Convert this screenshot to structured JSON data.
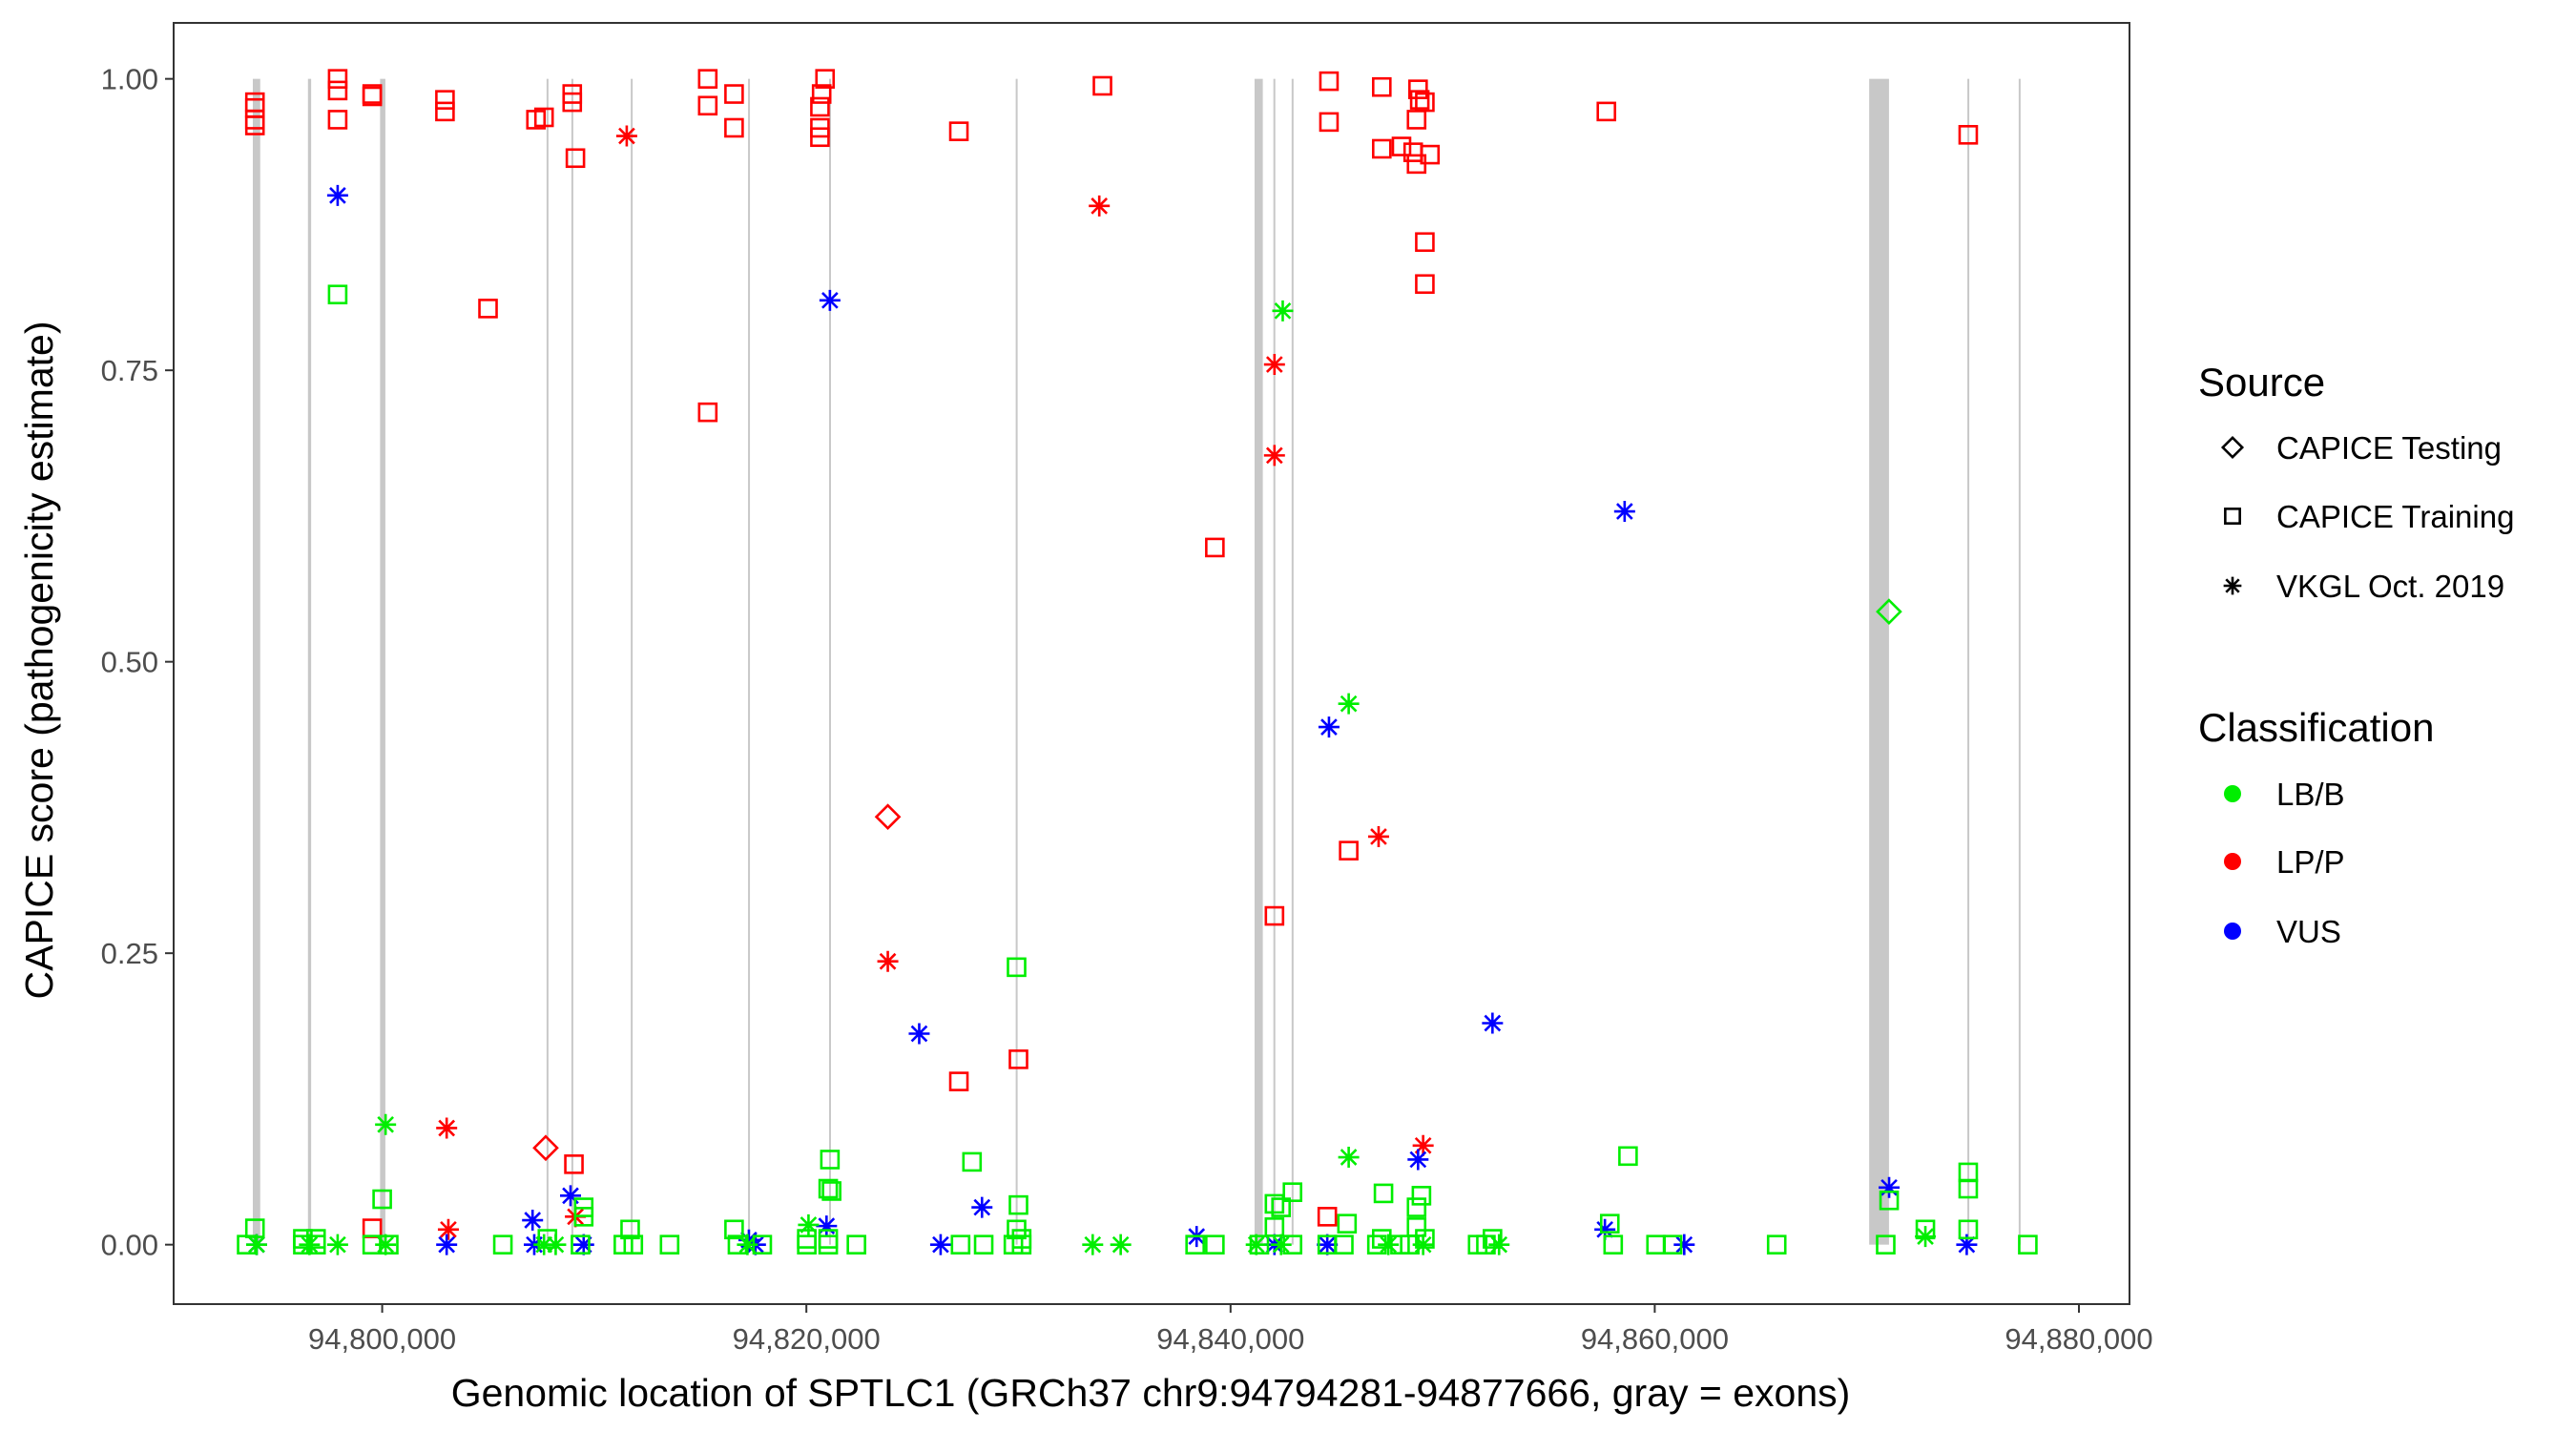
{
  "chart_data": {
    "type": "scatter",
    "xlabel": "Genomic location of SPTLC1 (GRCh37 chr9:94794281-94877666, gray = exons)",
    "ylabel": "CAPICE score (pathogenicity estimate)",
    "xlim": [
      94790167,
      94882384
    ],
    "ylim": [
      -0.051,
      1.048
    ],
    "x_ticks": [
      94800000,
      94820000,
      94840000,
      94860000,
      94880000
    ],
    "x_tick_labels": [
      "94,800,000",
      "94,820,000",
      "94,840,000",
      "94,860,000",
      "94,880,000"
    ],
    "y_ticks": [
      0,
      0.25,
      0.5,
      0.75,
      1.0
    ],
    "y_tick_labels": [
      "0.00",
      "0.25",
      "0.50",
      "0.75",
      "1.00"
    ],
    "grid": false,
    "legend_placement": "right",
    "legend": {
      "source_title": "Source",
      "sources": [
        {
          "label": "CAPICE Testing",
          "shape": "diamond"
        },
        {
          "label": "CAPICE Training",
          "shape": "square"
        },
        {
          "label": "VKGL Oct. 2019",
          "shape": "asterisk"
        }
      ],
      "class_title": "Classification",
      "classes": [
        {
          "label": "LB/B",
          "color": "#00ee00"
        },
        {
          "label": "LP/P",
          "color": "#ff0000"
        },
        {
          "label": "VUS",
          "color": "#0000ff"
        }
      ]
    },
    "exons": [
      [
        94793900,
        94794250
      ],
      [
        94796500,
        94796650
      ],
      [
        94799900,
        94800150
      ],
      [
        94807750,
        94807830
      ],
      [
        94808920,
        94809000
      ],
      [
        94811720,
        94811800
      ],
      [
        94817250,
        94817330
      ],
      [
        94821070,
        94821150
      ],
      [
        94829870,
        94829950
      ],
      [
        94841131,
        94841521
      ],
      [
        94842020,
        94842100
      ],
      [
        94842880,
        94842960
      ],
      [
        94870110,
        94871045
      ],
      [
        94874740,
        94874820
      ],
      [
        94877160,
        94877240
      ]
    ],
    "series": [
      {
        "source": "CAPICE Training",
        "class": "LP/P",
        "points": [
          [
            94794000,
            0.98
          ],
          [
            94794000,
            0.975
          ],
          [
            94794000,
            0.965
          ],
          [
            94794000,
            0.96
          ],
          [
            94797900,
            1.0
          ],
          [
            94797900,
            0.99
          ],
          [
            94797900,
            0.965
          ],
          [
            94799530,
            0.987
          ],
          [
            94799530,
            0.985
          ],
          [
            94802960,
            0.982
          ],
          [
            94802960,
            0.972
          ],
          [
            94807250,
            0.965
          ],
          [
            94807630,
            0.967
          ],
          [
            94808960,
            0.987
          ],
          [
            94808960,
            0.98
          ],
          [
            94809110,
            0.932
          ],
          [
            94815350,
            1.0
          ],
          [
            94815350,
            0.977
          ],
          [
            94816590,
            0.987
          ],
          [
            94816590,
            0.958
          ],
          [
            94820880,
            1.0
          ],
          [
            94820720,
            0.987
          ],
          [
            94820640,
            0.976
          ],
          [
            94820640,
            0.958
          ],
          [
            94820640,
            0.95
          ],
          [
            94827190,
            0.955
          ],
          [
            94833960,
            0.994
          ],
          [
            94844640,
            0.998
          ],
          [
            94844640,
            0.963
          ],
          [
            94847130,
            0.993
          ],
          [
            94847130,
            0.94
          ],
          [
            94848060,
            0.942
          ],
          [
            94848840,
            0.991
          ],
          [
            94848920,
            0.982
          ],
          [
            94848770,
            0.965
          ],
          [
            94848610,
            0.937
          ],
          [
            94848770,
            0.927
          ],
          [
            94849160,
            0.98
          ],
          [
            94849400,
            0.935
          ],
          [
            94849160,
            0.86
          ],
          [
            94849160,
            0.824
          ],
          [
            94857720,
            0.972
          ],
          [
            94874780,
            0.952
          ],
          [
            94804990,
            0.803
          ],
          [
            94815350,
            0.714
          ],
          [
            94839260,
            0.598
          ],
          [
            94845570,
            0.338
          ],
          [
            94842070,
            0.282
          ],
          [
            94827190,
            0.14
          ],
          [
            94830000,
            0.159
          ],
          [
            94809040,
            0.069
          ],
          [
            94799530,
            0.014
          ],
          [
            94844560,
            0.024
          ]
        ]
      },
      {
        "source": "VKGL Oct. 2019",
        "class": "LP/P",
        "points": [
          [
            94811530,
            0.951
          ],
          [
            94833810,
            0.891
          ],
          [
            94842070,
            0.755
          ],
          [
            94842070,
            0.677
          ],
          [
            94846980,
            0.35
          ],
          [
            94823840,
            0.243
          ],
          [
            94803040,
            0.1
          ],
          [
            94803120,
            0.013
          ],
          [
            94809110,
            0.024
          ],
          [
            94849080,
            0.085
          ]
        ]
      },
      {
        "source": "CAPICE Testing",
        "class": "LP/P",
        "points": [
          [
            94823840,
            0.367
          ],
          [
            94807710,
            0.083
          ]
        ]
      },
      {
        "source": "CAPICE Testing",
        "class": "LB/B",
        "points": [
          [
            94871045,
            0.543
          ]
        ]
      },
      {
        "source": "VKGL Oct. 2019",
        "class": "VUS",
        "points": [
          [
            94797900,
            0.9
          ],
          [
            94821110,
            0.81
          ],
          [
            94858580,
            0.629
          ],
          [
            94844640,
            0.444
          ],
          [
            94825320,
            0.181
          ],
          [
            94852350,
            0.19
          ],
          [
            94828280,
            0.032
          ],
          [
            94848840,
            0.073
          ],
          [
            94871050,
            0.049
          ],
          [
            94808880,
            0.042
          ],
          [
            94807090,
            0.021
          ],
          [
            94820950,
            0.016
          ],
          [
            94857650,
            0.013
          ],
          [
            94838400,
            0.007
          ],
          [
            94794080,
            0
          ],
          [
            94803040,
            0
          ],
          [
            94807170,
            0
          ],
          [
            94809500,
            0
          ],
          [
            94817290,
            0.004
          ],
          [
            94817600,
            0
          ],
          [
            94826330,
            0
          ],
          [
            94842070,
            0
          ],
          [
            94844560,
            0
          ],
          [
            94861390,
            0
          ],
          [
            94874710,
            0
          ]
        ]
      },
      {
        "source": "VKGL Oct. 2019",
        "class": "LB/B",
        "points": [
          [
            94842460,
            0.801
          ],
          [
            94845570,
            0.464
          ],
          [
            94800160,
            0.103
          ],
          [
            94845570,
            0.075
          ],
          [
            94820100,
            0.017
          ],
          [
            94872760,
            0.007
          ],
          [
            94794080,
            0
          ],
          [
            94796570,
            0
          ],
          [
            94797900,
            0
          ],
          [
            94800160,
            0
          ],
          [
            94807630,
            0
          ],
          [
            94808180,
            0
          ],
          [
            94817220,
            0
          ],
          [
            94833500,
            0
          ],
          [
            94834820,
            0
          ],
          [
            94841210,
            0
          ],
          [
            94842380,
            0
          ],
          [
            94847440,
            0
          ],
          [
            94849080,
            0
          ],
          [
            94852660,
            0
          ]
        ]
      },
      {
        "source": "CAPICE Training",
        "class": "LB/B",
        "points": [
          [
            94797900,
            0.815
          ],
          [
            94829910,
            0.238
          ],
          [
            94858740,
            0.076
          ],
          [
            94821110,
            0.073
          ],
          [
            94827810,
            0.071
          ],
          [
            94874780,
            0.062
          ],
          [
            94874780,
            0.048
          ],
          [
            94800000,
            0.039
          ],
          [
            94821030,
            0.048
          ],
          [
            94821190,
            0.046
          ],
          [
            94842920,
            0.045
          ],
          [
            94847210,
            0.044
          ],
          [
            94849000,
            0.042
          ],
          [
            94830000,
            0.034
          ],
          [
            94842070,
            0.035
          ],
          [
            94842380,
            0.032
          ],
          [
            94848770,
            0.032
          ],
          [
            94809500,
            0.032
          ],
          [
            94809500,
            0.024
          ],
          [
            94871050,
            0.038
          ],
          [
            94857880,
            0.018
          ],
          [
            94845490,
            0.018
          ],
          [
            94794000,
            0.014
          ],
          [
            94811690,
            0.013
          ],
          [
            94872760,
            0.013
          ],
          [
            94816590,
            0.013
          ],
          [
            94829910,
            0.013
          ],
          [
            94848770,
            0.015
          ],
          [
            94874780,
            0.013
          ],
          [
            94842070,
            0.015
          ],
          [
            94796260,
            0.005
          ],
          [
            94796880,
            0.005
          ],
          [
            94807790,
            0.005
          ],
          [
            94820020,
            0.005
          ],
          [
            94821030,
            0.005
          ],
          [
            94830150,
            0.005
          ],
          [
            94847130,
            0.005
          ],
          [
            94849160,
            0.005
          ],
          [
            94852350,
            0.005
          ],
          [
            94793610,
            0
          ],
          [
            94796260,
            0
          ],
          [
            94796880,
            0
          ],
          [
            94799530,
            0
          ],
          [
            94800310,
            0
          ],
          [
            94805690,
            0
          ],
          [
            94809350,
            0
          ],
          [
            94811370,
            0
          ],
          [
            94811840,
            0
          ],
          [
            94813550,
            0
          ],
          [
            94816750,
            0
          ],
          [
            94817920,
            0
          ],
          [
            94820020,
            0
          ],
          [
            94821030,
            0
          ],
          [
            94822360,
            0
          ],
          [
            94827270,
            0
          ],
          [
            94828360,
            0
          ],
          [
            94829760,
            0
          ],
          [
            94830150,
            0
          ],
          [
            94838330,
            0
          ],
          [
            94839260,
            0
          ],
          [
            94841360,
            0
          ],
          [
            94842920,
            0
          ],
          [
            94844560,
            0
          ],
          [
            94845340,
            0
          ],
          [
            94846900,
            0
          ],
          [
            94847990,
            0
          ],
          [
            94848450,
            0
          ],
          [
            94851650,
            0
          ],
          [
            94852040,
            0
          ],
          [
            94858040,
            0
          ],
          [
            94860060,
            0
          ],
          [
            94860840,
            0
          ],
          [
            94865750,
            0
          ],
          [
            94870890,
            0
          ],
          [
            94877590,
            0
          ]
        ]
      }
    ]
  }
}
